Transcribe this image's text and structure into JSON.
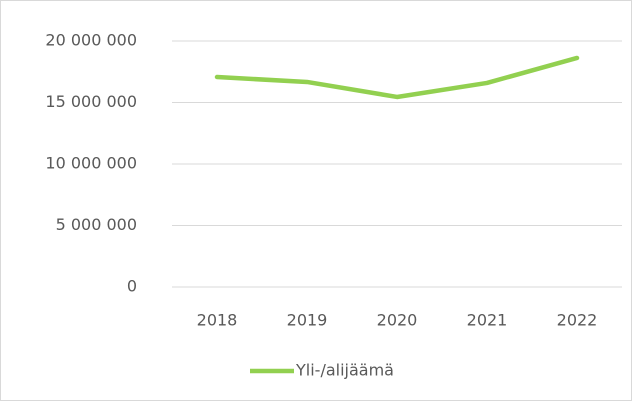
{
  "chart_data": {
    "type": "line",
    "categories": [
      "2018",
      "2019",
      "2020",
      "2021",
      "2022"
    ],
    "series": [
      {
        "name": "Yli-/alijäämä",
        "color": "#92d050",
        "values": [
          17070000,
          16670000,
          15450000,
          16590000,
          18620000
        ]
      }
    ],
    "ylim": [
      0,
      20000000
    ],
    "yticks": [
      0,
      {
        "value": 5000000,
        "label": "5 000 000"
      },
      {
        "value": 10000000,
        "label": "10 000 000"
      },
      {
        "value": 15000000,
        "label": "15 000 000"
      },
      {
        "value": 20000000,
        "label": "20 000 000"
      }
    ],
    "grid": true,
    "legend": "bottom"
  }
}
